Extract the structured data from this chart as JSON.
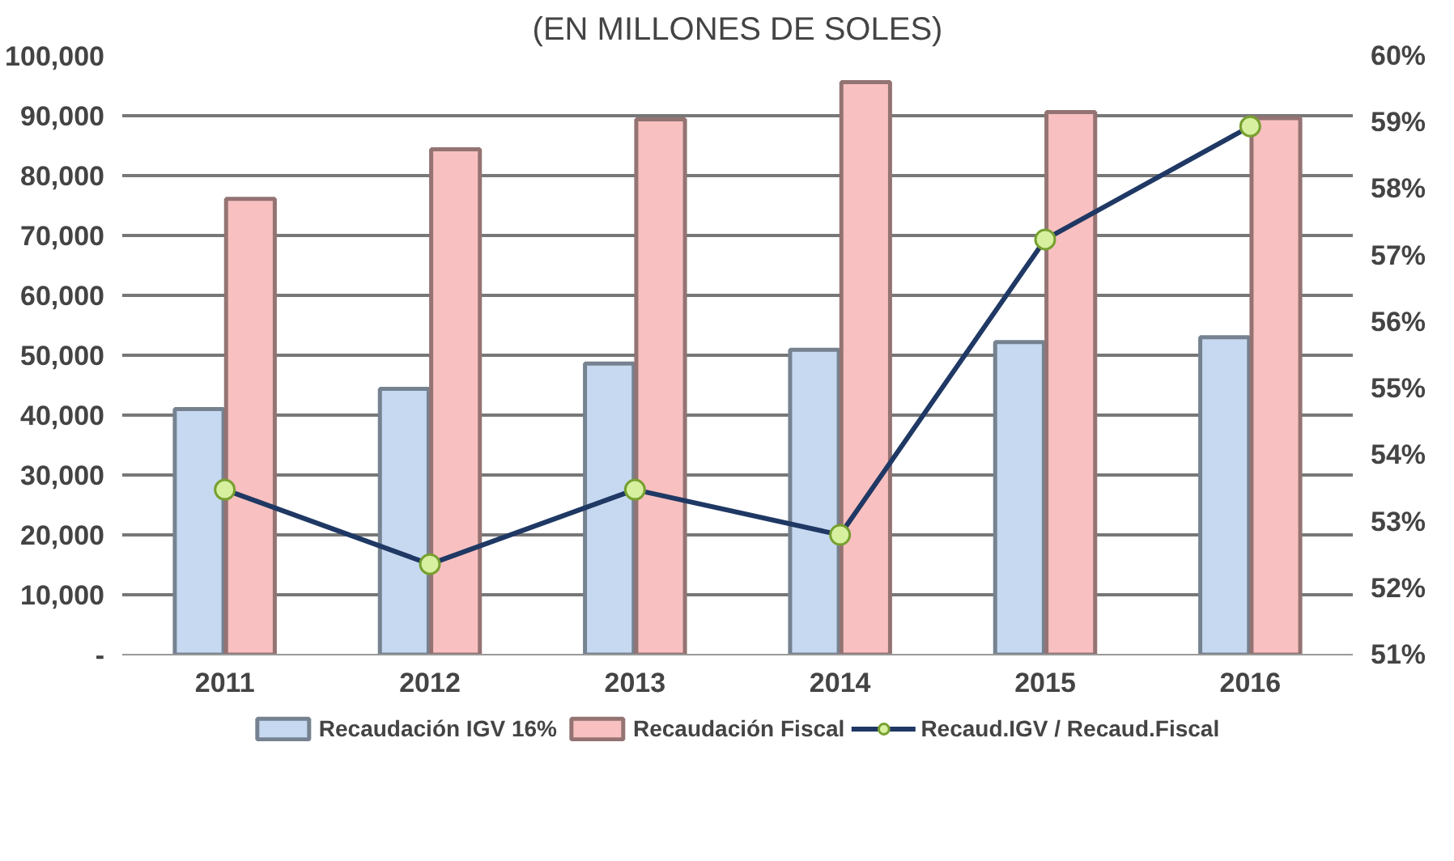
{
  "chart_data": {
    "type": "bar",
    "title": "(EN MILLONES DE SOLES)",
    "categories": [
      "2011",
      "2012",
      "2013",
      "2014",
      "2015",
      "2016"
    ],
    "series": [
      {
        "name": "Recaudación IGV 16%",
        "color": "#c6d9f1",
        "values": [
          41000,
          44400,
          48600,
          50900,
          52200,
          53000
        ]
      },
      {
        "name": "Recaudación Fiscal",
        "color": "#f8c0c0",
        "values": [
          76100,
          84400,
          89400,
          95600,
          90600,
          89600
        ]
      },
      {
        "name": "Recaud.IGV / Recaud.Fiscal",
        "type": "line",
        "axis": "y2",
        "color": "#1f3864",
        "marker": "circle",
        "values": [
          53.48,
          52.36,
          53.48,
          52.8,
          57.24,
          58.94
        ]
      }
    ],
    "ylim": [
      0,
      100000
    ],
    "yticks": [
      {
        "value": 0,
        "label": "-"
      },
      {
        "value": 10000,
        "label": "10,000"
      },
      {
        "value": 20000,
        "label": "20,000"
      },
      {
        "value": 30000,
        "label": "30,000"
      },
      {
        "value": 40000,
        "label": "40,000"
      },
      {
        "value": 50000,
        "label": "50,000"
      },
      {
        "value": 60000,
        "label": "60,000"
      },
      {
        "value": 70000,
        "label": "70,000"
      },
      {
        "value": 80000,
        "label": "80,000"
      },
      {
        "value": 90000,
        "label": "90,000"
      },
      {
        "value": 100000,
        "label": "100,000"
      }
    ],
    "y2lim": [
      51,
      60
    ],
    "y2ticks": [
      {
        "value": 51,
        "label": "51%"
      },
      {
        "value": 52,
        "label": "52%"
      },
      {
        "value": 53,
        "label": "53%"
      },
      {
        "value": 54,
        "label": "54%"
      },
      {
        "value": 55,
        "label": "55%"
      },
      {
        "value": 56,
        "label": "56%"
      },
      {
        "value": 57,
        "label": "57%"
      },
      {
        "value": 58,
        "label": "58%"
      },
      {
        "value": 59,
        "label": "59%"
      },
      {
        "value": 60,
        "label": "60%"
      }
    ],
    "grid": "y",
    "legend": "bottom"
  }
}
